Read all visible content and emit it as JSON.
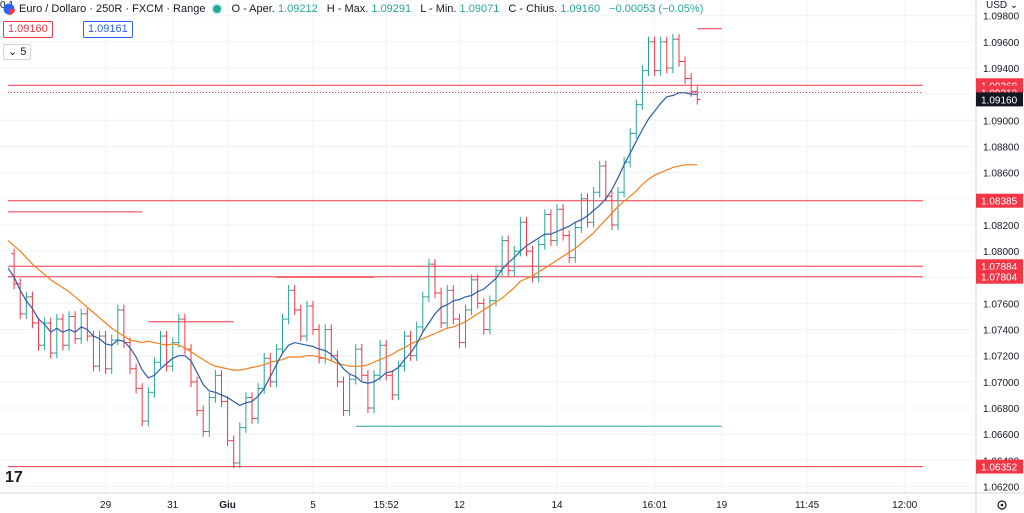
{
  "header": {
    "symbol_title": "Euro / Dollaro · 250R · FXCM · Range",
    "o_label": "O - Aper.",
    "o_value": "1.09212",
    "h_label": "H - Max.",
    "h_value": "1.09291",
    "l_label": "L - Min.",
    "l_value": "1.09071",
    "c_label": "C - Chius.",
    "c_value": "1.09160",
    "change": "−0.00053 (−0.05%)",
    "bid": "1.09160",
    "spread": "0.1",
    "ask": "1.09161",
    "indicator_count": "5",
    "currency": "USD",
    "logo": "17"
  },
  "colors": {
    "up": "#26a69a",
    "down": "#f23645",
    "ema_fast": "#2a5da8",
    "ema_slow": "#f57f17",
    "level": "#f23645",
    "grid": "#f0f3fa",
    "last": "#131722"
  },
  "chart_data": {
    "type": "ohlc-range",
    "y_range": [
      1.0615,
      1.0992
    ],
    "y_ticks": [
      "1.09800",
      "1.09600",
      "1.09400",
      "1.09200",
      "1.09000",
      "1.08800",
      "1.08600",
      "1.08400",
      "1.08200",
      "1.08000",
      "1.07800",
      "1.07600",
      "1.07400",
      "1.07200",
      "1.07000",
      "1.06800",
      "1.06600",
      "1.06400",
      "1.06200"
    ],
    "x_ticks": [
      {
        "label": "29",
        "idx": 16
      },
      {
        "label": "31",
        "idx": 27
      },
      {
        "label": "Giu",
        "idx": 36
      },
      {
        "label": "5",
        "idx": 50
      },
      {
        "label": "15:52",
        "idx": 62
      },
      {
        "label": "12",
        "idx": 74
      },
      {
        "label": "14",
        "idx": 90
      },
      {
        "label": "16:01",
        "idx": 106
      },
      {
        "label": "19",
        "idx": 117
      },
      {
        "label": "11:45",
        "idx": 131
      },
      {
        "label": "12:00",
        "idx": 147
      }
    ],
    "price_labels": [
      {
        "value": 1.09268,
        "text": "1.09268",
        "kind": "level"
      },
      {
        "value": 1.09213,
        "text": "1.09213",
        "kind": "level"
      },
      {
        "value": 1.0916,
        "text": "1.09160",
        "kind": "last"
      },
      {
        "value": 1.08385,
        "text": "1.08385",
        "kind": "level"
      },
      {
        "value": 1.07884,
        "text": "1.07884",
        "kind": "level"
      },
      {
        "value": 1.07804,
        "text": "1.07804",
        "kind": "level"
      },
      {
        "value": 1.06352,
        "text": "1.06352",
        "kind": "level"
      }
    ],
    "close": [
      1.0798,
      1.0775,
      1.0752,
      1.0765,
      1.0745,
      1.0728,
      1.0745,
      1.0722,
      1.0748,
      1.0728,
      1.075,
      1.0733,
      1.0752,
      1.0735,
      1.0712,
      1.0735,
      1.071,
      1.0732,
      1.0755,
      1.073,
      1.071,
      1.0695,
      1.067,
      1.0692,
      1.0715,
      1.0735,
      1.0712,
      1.073,
      1.0748,
      1.0725,
      1.07,
      1.0678,
      1.0662,
      1.0688,
      1.0705,
      1.0685,
      1.0655,
      1.0638,
      1.0665,
      1.0688,
      1.0672,
      1.0695,
      1.0718,
      1.07,
      1.0725,
      1.0748,
      1.077,
      1.0755,
      1.0735,
      1.0758,
      1.074,
      1.0718,
      1.074,
      1.072,
      1.07,
      1.0678,
      1.0702,
      1.0725,
      1.0705,
      1.068,
      1.0705,
      1.0728,
      1.0705,
      1.069,
      1.0712,
      1.0735,
      1.072,
      1.0742,
      1.0765,
      1.079,
      1.0768,
      1.0745,
      1.077,
      1.0748,
      1.073,
      1.0755,
      1.0778,
      1.076,
      1.074,
      1.0762,
      1.0785,
      1.0808,
      1.0785,
      1.08,
      1.0822,
      1.08,
      1.078,
      1.0805,
      1.0828,
      1.0808,
      1.0832,
      1.0812,
      1.0795,
      1.0818,
      1.084,
      1.0822,
      1.0845,
      1.0865,
      1.0842,
      1.082,
      1.0845,
      1.0868,
      1.089,
      1.0912,
      1.0938,
      1.096,
      1.0938,
      1.096,
      1.094,
      1.0962,
      1.0945,
      1.0932,
      1.0922,
      1.0916
    ],
    "ema_fast": [
      1.0787,
      1.078,
      1.077,
      1.0762,
      1.0756,
      1.0748,
      1.0744,
      1.0738,
      1.0741,
      1.0738,
      1.074,
      1.0738,
      1.0742,
      1.074,
      1.0735,
      1.0733,
      1.0729,
      1.0728,
      1.0732,
      1.0731,
      1.0726,
      1.0719,
      1.0709,
      1.0703,
      1.0705,
      1.071,
      1.0714,
      1.0718,
      1.072,
      1.072,
      1.0716,
      1.0707,
      1.0698,
      1.0693,
      1.0692,
      1.069,
      1.0688,
      1.0685,
      1.0682,
      1.0684,
      1.0685,
      1.0689,
      1.0695,
      1.0704,
      1.0713,
      1.0722,
      1.0728,
      1.073,
      1.0729,
      1.0728,
      1.0727,
      1.0725,
      1.0724,
      1.0721,
      1.0716,
      1.071,
      1.0706,
      1.0704,
      1.07,
      1.0699,
      1.07,
      1.0703,
      1.0707,
      1.0708,
      1.0711,
      1.0717,
      1.0722,
      1.0729,
      1.0738,
      1.0745,
      1.0752,
      1.0757,
      1.0759,
      1.0762,
      1.0763,
      1.0765,
      1.0766,
      1.0769,
      1.0771,
      1.0775,
      1.0779,
      1.0786,
      1.0791,
      1.0795,
      1.08,
      1.0804,
      1.0807,
      1.081,
      1.0813,
      1.0813,
      1.0815,
      1.0817,
      1.0819,
      1.0822,
      1.0824,
      1.0827,
      1.0831,
      1.0835,
      1.084,
      1.0847,
      1.0856,
      1.0866,
      1.0875,
      1.0884,
      1.0893,
      1.0901,
      1.0907,
      1.0913,
      1.0918,
      1.0919,
      1.0921,
      1.0921,
      1.092,
      1.092
    ],
    "ema_slow": [
      1.0808,
      1.0804,
      1.08,
      1.0795,
      1.079,
      1.0786,
      1.0782,
      1.0778,
      1.0775,
      1.0772,
      1.0769,
      1.0765,
      1.0761,
      1.0757,
      1.0753,
      1.0749,
      1.0745,
      1.0741,
      1.0738,
      1.0735,
      1.0732,
      1.0731,
      1.073,
      1.0731,
      1.073,
      1.0729,
      1.0728,
      1.0729,
      1.0728,
      1.0726,
      1.0723,
      1.072,
      1.0717,
      1.0714,
      1.0712,
      1.0711,
      1.071,
      1.0709,
      1.0709,
      1.071,
      1.0711,
      1.0712,
      1.0713,
      1.0715,
      1.0716,
      1.0717,
      1.0719,
      1.0719,
      1.0719,
      1.072,
      1.072,
      1.0719,
      1.0718,
      1.0716,
      1.0714,
      1.0713,
      1.0712,
      1.0712,
      1.0712,
      1.0713,
      1.0715,
      1.0717,
      1.0719,
      1.0721,
      1.0724,
      1.0726,
      1.0729,
      1.0731,
      1.0733,
      1.0735,
      1.0737,
      1.0739,
      1.0741,
      1.0742,
      1.0744,
      1.0746,
      1.0749,
      1.0752,
      1.0755,
      1.0758,
      1.0761,
      1.0764,
      1.0768,
      1.0772,
      1.0777,
      1.0779,
      1.0781,
      1.0784,
      1.0787,
      1.079,
      1.0793,
      1.0796,
      1.0799,
      1.0802,
      1.0806,
      1.081,
      1.0814,
      1.0819,
      1.0824,
      1.0829,
      1.0834,
      1.0838,
      1.0842,
      1.0846,
      1.0851,
      1.0855,
      1.0858,
      1.086,
      1.0862,
      1.0864,
      1.0865,
      1.0866,
      1.0866,
      1.0866
    ],
    "series": [
      {
        "name": "EMA fast",
        "key": "ema_fast"
      },
      {
        "name": "EMA slow",
        "key": "ema_slow"
      }
    ],
    "levels": [
      {
        "value": 1.09268,
        "from_idx": 0,
        "to_idx": 150
      },
      {
        "value": 1.09213,
        "from_idx": 0,
        "to_idx": 150,
        "dotted": true
      },
      {
        "value": 1.08385,
        "from_idx": 0,
        "to_idx": 150
      },
      {
        "value": 1.07884,
        "from_idx": 0,
        "to_idx": 150
      },
      {
        "value": 1.07804,
        "from_idx": 0,
        "to_idx": 150
      },
      {
        "value": 1.06352,
        "from_idx": 0,
        "to_idx": 150
      },
      {
        "value": 1.083,
        "from_idx": 0,
        "to_idx": 22
      },
      {
        "value": 1.0746,
        "from_idx": 23,
        "to_idx": 37
      },
      {
        "value": 1.078,
        "from_idx": 44,
        "to_idx": 60
      },
      {
        "value": 1.0666,
        "from_idx": 57,
        "to_idx": 117,
        "color": "up"
      },
      {
        "value": 1.097,
        "from_idx": 113,
        "to_idx": 117
      }
    ]
  }
}
